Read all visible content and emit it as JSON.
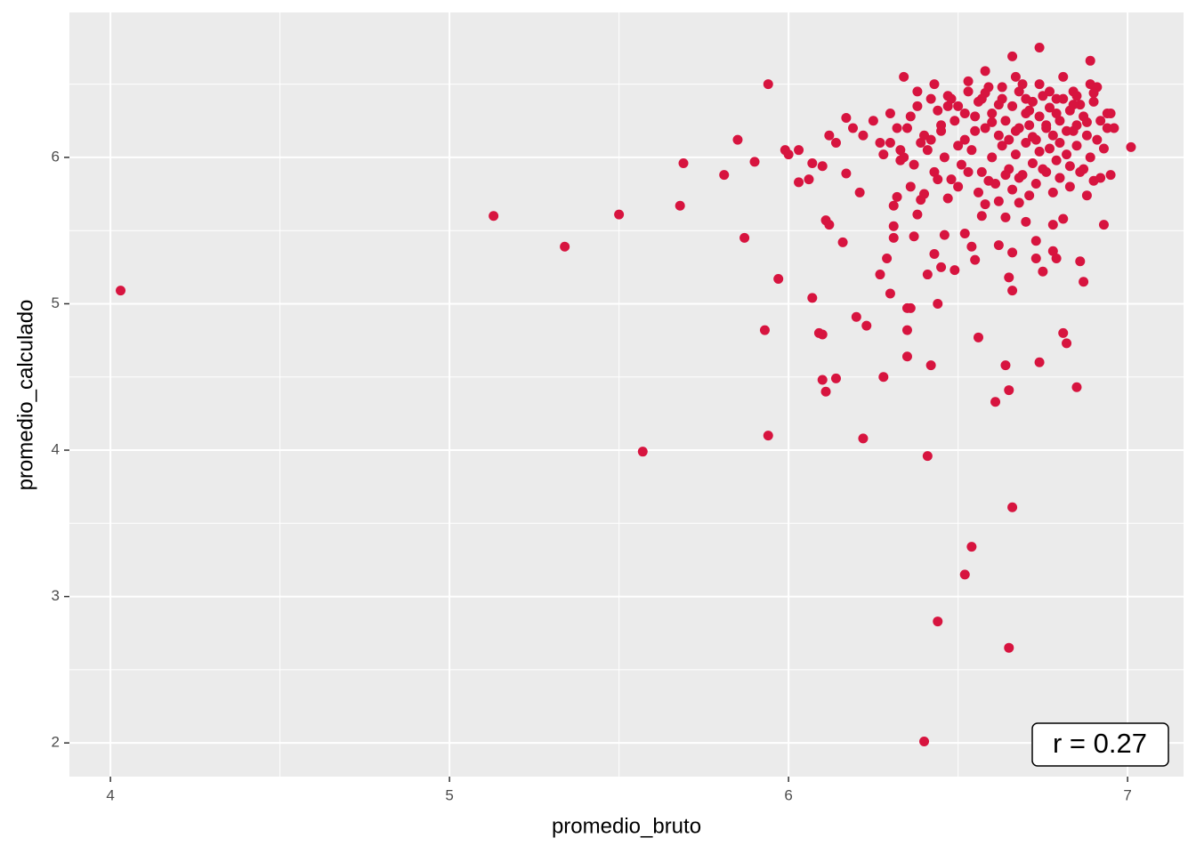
{
  "chart_data": {
    "type": "scatter",
    "x_label": "promedio_bruto",
    "y_label": "promedio_calculado",
    "annotation": "r = 0.27",
    "color": "#d7143f",
    "grid": true,
    "xlim": [
      3.879,
      7.165
    ],
    "ylim": [
      1.77,
      6.99
    ],
    "xticks": [
      4,
      5,
      6,
      7
    ],
    "yticks": [
      2,
      3,
      4,
      5,
      6
    ],
    "xminor": [
      4.5,
      5.5,
      6.5
    ],
    "yminor": [
      2.5,
      3.5,
      4.5,
      5.5,
      6.5
    ],
    "x": [
      4.03,
      5.13,
      5.34,
      5.5,
      5.57,
      5.68,
      5.69,
      5.81,
      5.85,
      5.87,
      5.9,
      5.94,
      5.93,
      5.94,
      5.97,
      5.99,
      6.0,
      6.03,
      6.03,
      6.06,
      6.07,
      6.07,
      6.09,
      6.1,
      6.1,
      6.11,
      6.14,
      6.1,
      6.11,
      6.12,
      6.16,
      6.17,
      6.2,
      6.21,
      6.23,
      6.22,
      6.27,
      6.28,
      6.29,
      6.3,
      6.31,
      6.35,
      6.35,
      6.35,
      6.36,
      6.37,
      6.41,
      6.4,
      6.42,
      6.41,
      6.44,
      6.44,
      6.43,
      6.45,
      6.52,
      6.54,
      6.56,
      6.61,
      6.64,
      6.65,
      6.65,
      6.66,
      6.74,
      6.81,
      6.82,
      6.85,
      6.87,
      6.86,
      6.93,
      6.95,
      7.01,
      6.89,
      6.74,
      6.66,
      6.58,
      6.34,
      6.31,
      6.46,
      6.54,
      6.55,
      6.49,
      6.52,
      6.62,
      6.66,
      6.65,
      6.66,
      6.73,
      6.75,
      6.73,
      6.78,
      6.79,
      6.81,
      6.78,
      6.7,
      6.68,
      6.64,
      6.57,
      6.58,
      6.39,
      6.38,
      6.31,
      6.32,
      6.39,
      6.12,
      6.14,
      6.17,
      6.19,
      6.22,
      6.25,
      6.27,
      6.3,
      6.32,
      6.33,
      6.36,
      6.38,
      6.4,
      6.42,
      6.44,
      6.45,
      6.47,
      6.49,
      6.5,
      6.52,
      6.53,
      6.55,
      6.56,
      6.58,
      6.59,
      6.6,
      6.62,
      6.63,
      6.64,
      6.66,
      6.67,
      6.68,
      6.7,
      6.71,
      6.72,
      6.73,
      6.74,
      6.75,
      6.76,
      6.77,
      6.78,
      6.79,
      6.8,
      6.81,
      6.82,
      6.83,
      6.84,
      6.85,
      6.86,
      6.87,
      6.88,
      6.9,
      6.91,
      6.92,
      6.94,
      6.96,
      6.34,
      6.37,
      6.41,
      6.43,
      6.46,
      6.48,
      6.51,
      6.54,
      6.57,
      6.6,
      6.61,
      6.63,
      6.65,
      6.67,
      6.69,
      6.7,
      6.72,
      6.74,
      6.76,
      6.77,
      6.79,
      6.8,
      6.82,
      6.83,
      6.85,
      6.87,
      6.89,
      6.9,
      6.93,
      6.36,
      6.4,
      6.44,
      6.47,
      6.5,
      6.53,
      6.56,
      6.59,
      6.62,
      6.64,
      6.66,
      6.68,
      6.71,
      6.73,
      6.75,
      6.78,
      6.8,
      6.83,
      6.86,
      6.88,
      6.92,
      6.3,
      6.35,
      6.42,
      6.45,
      6.5,
      6.55,
      6.6,
      6.65,
      6.68,
      6.72,
      6.76,
      6.8,
      6.84,
      6.88,
      6.91,
      6.94,
      6.38,
      6.43,
      6.48,
      6.53,
      6.58,
      6.63,
      6.67,
      6.7,
      6.74,
      6.77,
      6.81,
      6.85,
      6.89,
      6.28,
      6.33,
      6.47,
      6.52,
      6.57,
      6.62,
      6.69,
      6.71,
      6.79,
      6.84,
      6.9,
      6.95
    ],
    "values": [
      5.09,
      5.6,
      5.39,
      5.61,
      3.99,
      5.67,
      5.96,
      5.88,
      6.12,
      5.45,
      5.97,
      6.5,
      4.82,
      4.1,
      5.17,
      6.05,
      6.02,
      6.05,
      5.83,
      5.85,
      5.96,
      5.04,
      4.8,
      4.79,
      4.48,
      4.4,
      4.49,
      5.94,
      5.57,
      5.54,
      5.42,
      5.89,
      4.91,
      5.76,
      4.85,
      4.08,
      5.2,
      4.5,
      5.31,
      5.07,
      5.45,
      4.64,
      4.82,
      4.97,
      4.97,
      5.46,
      3.96,
      2.01,
      4.58,
      5.2,
      5.0,
      2.83,
      5.34,
      5.25,
      3.15,
      3.34,
      4.77,
      4.33,
      4.58,
      4.41,
      2.65,
      3.61,
      4.6,
      4.8,
      4.73,
      4.43,
      5.15,
      5.29,
      5.54,
      5.88,
      6.07,
      6.66,
      6.75,
      6.69,
      6.59,
      6.55,
      5.53,
      5.47,
      5.39,
      5.3,
      5.23,
      5.48,
      5.4,
      5.35,
      5.18,
      5.09,
      5.31,
      5.22,
      5.43,
      5.36,
      5.31,
      5.58,
      5.54,
      5.56,
      5.69,
      5.59,
      5.6,
      5.68,
      5.71,
      5.61,
      5.67,
      5.73,
      6.1,
      6.15,
      6.1,
      6.27,
      6.2,
      6.15,
      6.25,
      6.1,
      6.3,
      6.2,
      6.05,
      6.28,
      6.35,
      6.15,
      6.4,
      6.32,
      6.18,
      6.42,
      6.25,
      6.35,
      6.12,
      6.45,
      6.28,
      6.38,
      6.2,
      6.48,
      6.3,
      6.15,
      6.4,
      6.25,
      6.35,
      6.18,
      6.45,
      6.3,
      6.22,
      6.38,
      6.12,
      6.28,
      6.42,
      6.2,
      6.34,
      6.15,
      6.3,
      6.25,
      6.4,
      6.18,
      6.32,
      6.45,
      6.22,
      6.36,
      6.28,
      6.15,
      6.38,
      6.48,
      6.25,
      6.3,
      6.2,
      6.0,
      5.95,
      6.05,
      5.9,
      6.0,
      5.85,
      5.95,
      6.05,
      5.9,
      6.0,
      5.82,
      6.08,
      5.92,
      6.02,
      5.88,
      6.1,
      5.96,
      6.04,
      5.9,
      6.06,
      5.98,
      5.86,
      6.02,
      5.94,
      6.08,
      5.92,
      6.0,
      5.84,
      6.06,
      5.8,
      5.75,
      5.85,
      5.72,
      5.8,
      5.9,
      5.76,
      5.84,
      5.7,
      5.88,
      5.78,
      5.86,
      5.74,
      5.82,
      5.92,
      5.76,
      5.86,
      5.8,
      5.9,
      5.74,
      5.86,
      6.1,
      6.2,
      6.12,
      6.22,
      6.08,
      6.18,
      6.24,
      6.12,
      6.2,
      6.14,
      6.22,
      6.1,
      6.18,
      6.24,
      6.12,
      6.2,
      6.45,
      6.5,
      6.4,
      6.52,
      6.44,
      6.48,
      6.55,
      6.4,
      6.5,
      6.45,
      6.55,
      6.42,
      6.5,
      6.02,
      5.98,
      6.35,
      6.3,
      6.4,
      6.36,
      6.5,
      6.32,
      6.4,
      6.36,
      6.44,
      6.3
    ]
  }
}
